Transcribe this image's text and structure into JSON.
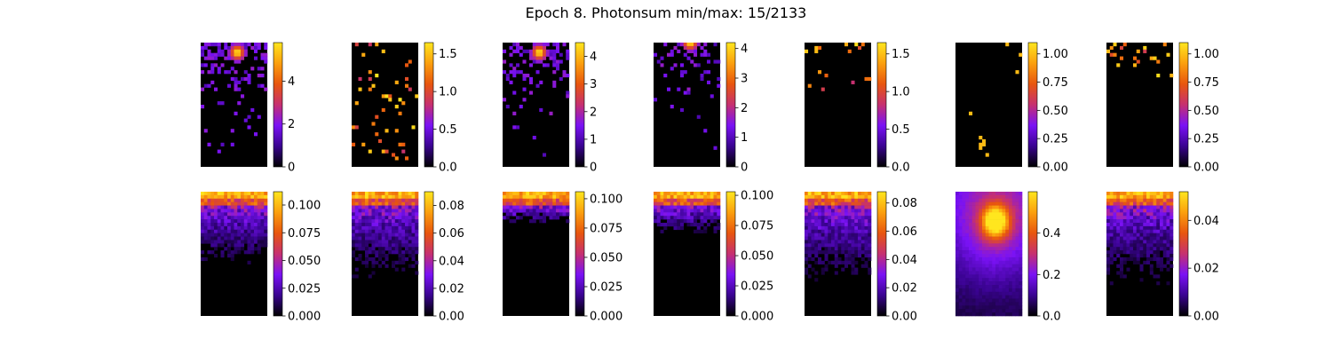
{
  "title": "Epoch 8. Photonsum min/max: 15/2133",
  "colormap": [
    "#000000",
    "#3a0391",
    "#7a12f5",
    "#c63070",
    "#e8560e",
    "#fb9f0e",
    "#ffe61e"
  ],
  "chart_data": [
    {
      "type": "heatmap",
      "row": 0,
      "col": 0,
      "pattern": "sparse-hotspot",
      "hotspot": [
        0.55,
        0.08
      ],
      "density": 0.55,
      "depth": 0.65,
      "colorbar": {
        "min": 0,
        "max": 5.8,
        "ticks": [
          "0",
          "2",
          "4"
        ],
        "tick_values": [
          0,
          2,
          4
        ]
      }
    },
    {
      "type": "heatmap",
      "row": 0,
      "col": 1,
      "pattern": "scattered",
      "density": 0.06,
      "colorbar": {
        "min": 0,
        "max": 1.65,
        "ticks": [
          "0.0",
          "0.5",
          "1.0",
          "1.5"
        ],
        "tick_values": [
          0,
          0.5,
          1.0,
          1.5
        ]
      }
    },
    {
      "type": "heatmap",
      "row": 0,
      "col": 2,
      "pattern": "sparse-hotspot",
      "hotspot": [
        0.55,
        0.08
      ],
      "density": 0.55,
      "depth": 0.7,
      "colorbar": {
        "min": 0,
        "max": 4.5,
        "ticks": [
          "0",
          "1",
          "2",
          "3",
          "4"
        ],
        "tick_values": [
          0,
          1,
          2,
          3,
          4
        ]
      }
    },
    {
      "type": "heatmap",
      "row": 0,
      "col": 3,
      "pattern": "sparse-hotspot",
      "hotspot": [
        0.55,
        0.0
      ],
      "density": 0.45,
      "depth": 0.55,
      "colorbar": {
        "min": 0,
        "max": 4.2,
        "ticks": [
          "0",
          "1",
          "2",
          "3",
          "4"
        ],
        "tick_values": [
          0,
          1,
          2,
          3,
          4
        ]
      }
    },
    {
      "type": "heatmap",
      "row": 0,
      "col": 4,
      "pattern": "scattered-top",
      "density": 0.05,
      "colorbar": {
        "min": 0,
        "max": 1.65,
        "ticks": [
          "0.0",
          "0.5",
          "1.0",
          "1.5"
        ],
        "tick_values": [
          0,
          0.5,
          1.0,
          1.5
        ]
      }
    },
    {
      "type": "heatmap",
      "row": 0,
      "col": 5,
      "pattern": "few-points",
      "points": [
        [
          0.78,
          0.02
        ],
        [
          0.96,
          0.11
        ],
        [
          0.9,
          0.24
        ],
        [
          0.21,
          0.56
        ],
        [
          0.36,
          0.77
        ],
        [
          0.4,
          0.78
        ],
        [
          0.36,
          0.81
        ],
        [
          0.4,
          0.82
        ],
        [
          0.38,
          0.86
        ],
        [
          0.45,
          0.91
        ]
      ],
      "colorbar": {
        "min": 0,
        "max": 1.1,
        "ticks": [
          "0.00",
          "0.25",
          "0.50",
          "0.75",
          "1.00"
        ],
        "tick_values": [
          0,
          0.25,
          0.5,
          0.75,
          1.0
        ]
      }
    },
    {
      "type": "heatmap",
      "row": 0,
      "col": 6,
      "pattern": "scattered-top",
      "density": 0.1,
      "colorbar": {
        "min": 0,
        "max": 1.1,
        "ticks": [
          "0.00",
          "0.25",
          "0.50",
          "0.75",
          "1.00"
        ],
        "tick_values": [
          0,
          0.25,
          0.5,
          0.75,
          1.0
        ]
      }
    },
    {
      "type": "heatmap",
      "row": 1,
      "col": 0,
      "pattern": "top-band",
      "depth": 0.5,
      "colorbar": {
        "min": 0,
        "max": 0.112,
        "ticks": [
          "0.000",
          "0.025",
          "0.050",
          "0.075",
          "0.100"
        ],
        "tick_values": [
          0,
          0.025,
          0.05,
          0.075,
          0.1
        ]
      }
    },
    {
      "type": "heatmap",
      "row": 1,
      "col": 1,
      "pattern": "top-band",
      "depth": 0.58,
      "colorbar": {
        "min": 0,
        "max": 0.09,
        "ticks": [
          "0.00",
          "0.02",
          "0.04",
          "0.06",
          "0.08"
        ],
        "tick_values": [
          0,
          0.02,
          0.04,
          0.06,
          0.08
        ]
      }
    },
    {
      "type": "heatmap",
      "row": 1,
      "col": 2,
      "pattern": "top-band",
      "depth": 0.22,
      "colorbar": {
        "min": 0,
        "max": 0.106,
        "ticks": [
          "0.000",
          "0.025",
          "0.050",
          "0.075",
          "0.100"
        ],
        "tick_values": [
          0,
          0.025,
          0.05,
          0.075,
          0.1
        ]
      }
    },
    {
      "type": "heatmap",
      "row": 1,
      "col": 3,
      "pattern": "top-band",
      "depth": 0.28,
      "colorbar": {
        "min": 0,
        "max": 0.103,
        "ticks": [
          "0.000",
          "0.025",
          "0.050",
          "0.075",
          "0.100"
        ],
        "tick_values": [
          0,
          0.025,
          0.05,
          0.075,
          0.1
        ]
      }
    },
    {
      "type": "heatmap",
      "row": 1,
      "col": 4,
      "pattern": "top-band",
      "depth": 0.62,
      "colorbar": {
        "min": 0,
        "max": 0.088,
        "ticks": [
          "0.00",
          "0.02",
          "0.04",
          "0.06",
          "0.08"
        ],
        "tick_values": [
          0,
          0.02,
          0.04,
          0.06,
          0.08
        ]
      }
    },
    {
      "type": "heatmap",
      "row": 1,
      "col": 5,
      "pattern": "blob",
      "hotspot": [
        0.6,
        0.24
      ],
      "colorbar": {
        "min": 0,
        "max": 0.6,
        "ticks": [
          "0.0",
          "0.2",
          "0.4"
        ],
        "tick_values": [
          0,
          0.2,
          0.4
        ]
      }
    },
    {
      "type": "heatmap",
      "row": 1,
      "col": 6,
      "pattern": "top-band",
      "depth": 0.62,
      "colorbar": {
        "min": 0,
        "max": 0.052,
        "ticks": [
          "0.00",
          "0.02",
          "0.04"
        ],
        "tick_values": [
          0,
          0.02,
          0.04
        ]
      }
    }
  ]
}
